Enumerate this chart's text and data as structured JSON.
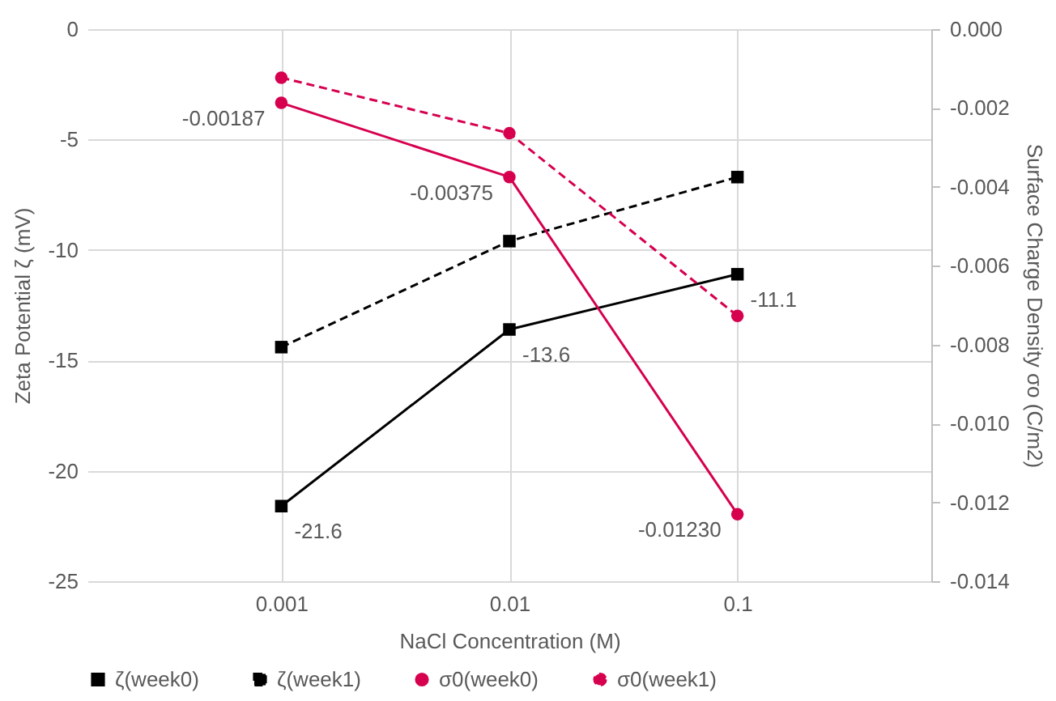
{
  "chart_data": {
    "type": "line",
    "xlabel": "NaCl Concentration (M)",
    "ylabel": "Zeta Potential ζ (mV)",
    "y2label": "Surface Charge Density σo (C/m2)",
    "categories": [
      "0.001",
      "0.01",
      "0.1"
    ],
    "ylim": [
      -25,
      0
    ],
    "yticks": [
      -25,
      -20,
      -15,
      -10,
      -5,
      0
    ],
    "y2lim": [
      -0.014,
      0
    ],
    "y2ticks": [
      {
        "value": -0.014,
        "label": "-0.014"
      },
      {
        "value": -0.012,
        "label": "-0.012"
      },
      {
        "value": -0.01,
        "label": "-0.010"
      },
      {
        "value": -0.008,
        "label": "-0.008"
      },
      {
        "value": -0.006,
        "label": "-0.006"
      },
      {
        "value": -0.004,
        "label": "-0.004"
      },
      {
        "value": -0.002,
        "label": "-0.002"
      },
      {
        "value": 0,
        "label": "0.000"
      }
    ],
    "grid": true,
    "legend": "bottom",
    "series": [
      {
        "name": "ζ(week0)",
        "color": "#000000",
        "values": [
          -21.6,
          -13.6,
          -11.1
        ],
        "marker": "square",
        "line_style": "solid",
        "value_labels": [
          "-21.6",
          "-13.6",
          "-11.1"
        ]
      },
      {
        "name": "ζ(week1)",
        "color": "#000000",
        "values": [
          -14.4,
          -9.6,
          -6.7
        ],
        "marker": "square",
        "line_style": "dashed"
      },
      {
        "name": "σ0(week0)",
        "color": "#d6004f",
        "values": [
          -0.00187,
          -0.00375,
          -0.0123
        ],
        "marker": "circle",
        "line_style": "solid",
        "axis": "y2",
        "value_labels": [
          "-0.00187",
          "-0.00375",
          "-0.01230"
        ]
      },
      {
        "name": "σ0(week1)",
        "color": "#d6004f",
        "values": [
          -0.00123,
          -0.00264,
          -0.00727
        ],
        "marker": "circle",
        "line_style": "dashed",
        "axis": "y2"
      }
    ]
  }
}
